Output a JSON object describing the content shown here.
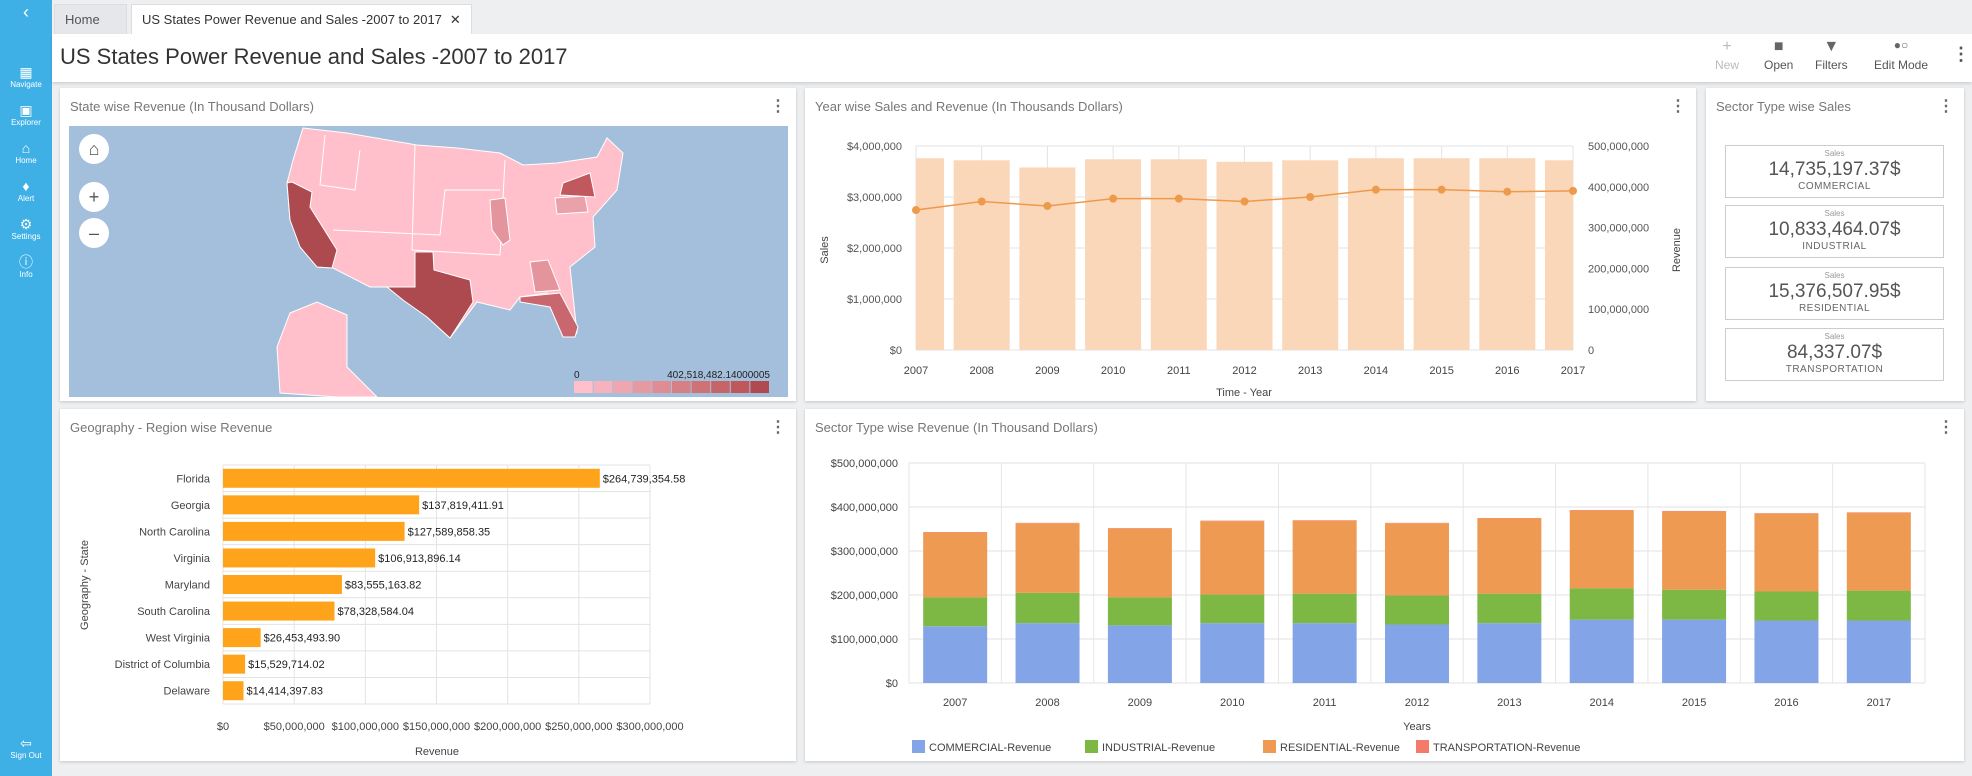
{
  "sidebar": {
    "items": [
      {
        "label": "Navigate",
        "icon": "grid-icon"
      },
      {
        "label": "Explorer",
        "icon": "folder-icon"
      },
      {
        "label": "Home",
        "icon": "home-icon"
      },
      {
        "label": "Alert",
        "icon": "bell-icon"
      },
      {
        "label": "Settings",
        "icon": "gear-icon"
      },
      {
        "label": "Info",
        "icon": "info-icon"
      }
    ],
    "signout": "Sign Out"
  },
  "tabs": [
    {
      "label": "Home"
    },
    {
      "label": "US States Power Revenue and Sales -2007 to 2017"
    }
  ],
  "header": {
    "title": "US States Power Revenue and Sales -2007 to 2017"
  },
  "toolbar": {
    "new": "New",
    "open": "Open",
    "filters": "Filters",
    "edit_mode": "Edit Mode"
  },
  "panels": {
    "map": "State wise Revenue (In Thousand Dollars)",
    "yearwise": "Year wise Sales and Revenue (In Thousands Dollars)",
    "sector_sales": "Sector Type wise Sales",
    "region": "Geography - Region wise Revenue",
    "sector_revenue": "Sector Type wise Revenue (In Thousand Dollars)"
  },
  "map": {
    "legend_min": "0",
    "legend_max": "402,518,482.14000005",
    "colors": [
      "#ffc0cb",
      "#f7b3bd",
      "#efa6ae",
      "#e799a0",
      "#df8c92",
      "#d67f84",
      "#ce7276",
      "#c66568",
      "#be585a",
      "#b04a4e"
    ]
  },
  "sector_sales": [
    {
      "label": "Sales",
      "value": "14,735,197.37$",
      "sector": "COMMERCIAL"
    },
    {
      "label": "Sales",
      "value": "10,833,464.07$",
      "sector": "INDUSTRIAL"
    },
    {
      "label": "Sales",
      "value": "15,376,507.95$",
      "sector": "RESIDENTIAL"
    },
    {
      "label": "Sales",
      "value": "84,337.07$",
      "sector": "TRANSPORTATION"
    }
  ],
  "chart_data": [
    {
      "type": "bar+line",
      "title": "Year wise Sales and Revenue (In Thousands Dollars)",
      "xlabel": "Time - Year",
      "ylabel": "Sales",
      "y2label": "Revenue",
      "categories": [
        "2007",
        "2008",
        "2009",
        "2010",
        "2011",
        "2012",
        "2013",
        "2014",
        "2015",
        "2016",
        "2017"
      ],
      "series": [
        {
          "name": "Sales",
          "type": "bar",
          "axis": "left",
          "color": "#fad7b8",
          "values": [
            3760000,
            3720000,
            3580000,
            3740000,
            3740000,
            3690000,
            3720000,
            3760000,
            3760000,
            3760000,
            3720000
          ]
        },
        {
          "name": "Revenue",
          "type": "line",
          "axis": "right",
          "color": "#ee9a4d",
          "values": [
            343000000,
            364000000,
            353000000,
            371000000,
            371000000,
            364000000,
            375000000,
            393000000,
            393000000,
            388000000,
            390000000
          ]
        }
      ],
      "ylim": [
        0,
        4000000
      ],
      "y2lim": [
        0,
        500000000
      ],
      "yticks": [
        "$0",
        "$1,000,000",
        "$2,000,000",
        "$3,000,000",
        "$4,000,000"
      ],
      "y2ticks": [
        "0",
        "100,000,000",
        "200,000,000",
        "300,000,000",
        "400,000,000",
        "500,000,000"
      ],
      "grid": true
    },
    {
      "type": "bar",
      "orientation": "horizontal",
      "title": "Geography - Region wise Revenue",
      "xlabel": "Revenue",
      "ylabel": "Geography - State",
      "color": "#ffa31a",
      "categories": [
        "Florida",
        "Georgia",
        "North Carolina",
        "Virginia",
        "Maryland",
        "South Carolina",
        "West Virginia",
        "District of Columbia",
        "Delaware"
      ],
      "values": [
        264739354.58,
        137819411.91,
        127589858.35,
        106913896.14,
        83555163.82,
        78328584.04,
        26453493.9,
        15529714.02,
        14414397.83
      ],
      "data_labels": [
        "$264,739,354.58",
        "$137,819,411.91",
        "$127,589,858.35",
        "$106,913,896.14",
        "$83,555,163.82",
        "$78,328,584.04",
        "$26,453,493.90",
        "$15,529,714.02",
        "$14,414,397.83"
      ],
      "xlim": [
        0,
        300000000
      ],
      "xticks": [
        "$0",
        "$50,000,000",
        "$100,000,000",
        "$150,000,000",
        "$200,000,000",
        "$250,000,000",
        "$300,000,000"
      ],
      "grid": true
    },
    {
      "type": "bar",
      "stacked": true,
      "title": "Sector Type wise Revenue (In Thousand Dollars)",
      "xlabel": "Years",
      "legend": "bottom",
      "categories": [
        "2007",
        "2008",
        "2009",
        "2010",
        "2011",
        "2012",
        "2013",
        "2014",
        "2015",
        "2016",
        "2017"
      ],
      "series": [
        {
          "name": "COMMERCIAL-Revenue",
          "color": "#84a4e8",
          "values": [
            129000000,
            136000000,
            131000000,
            136000000,
            136000000,
            133000000,
            136000000,
            144000000,
            144000000,
            142000000,
            142000000
          ]
        },
        {
          "name": "INDUSTRIAL-Revenue",
          "color": "#7cb843",
          "values": [
            66000000,
            69000000,
            64000000,
            65000000,
            67000000,
            66000000,
            67000000,
            71000000,
            68000000,
            66000000,
            68000000
          ]
        },
        {
          "name": "RESIDENTIAL-Revenue",
          "color": "#ee9a52",
          "values": [
            147000000,
            158000000,
            156000000,
            167000000,
            166000000,
            164000000,
            171000000,
            177000000,
            178000000,
            177000000,
            177000000
          ]
        },
        {
          "name": "TRANSPORTATION-Revenue",
          "color": "#f57a6a",
          "values": [
            1000000,
            1000000,
            1000000,
            1000000,
            1000000,
            1000000,
            1000000,
            1000000,
            1000000,
            1000000,
            1000000
          ]
        }
      ],
      "ylim": [
        0,
        500000000
      ],
      "yticks": [
        "$0",
        "$100,000,000",
        "$200,000,000",
        "$300,000,000",
        "$400,000,000",
        "$500,000,000"
      ],
      "grid": true
    }
  ]
}
